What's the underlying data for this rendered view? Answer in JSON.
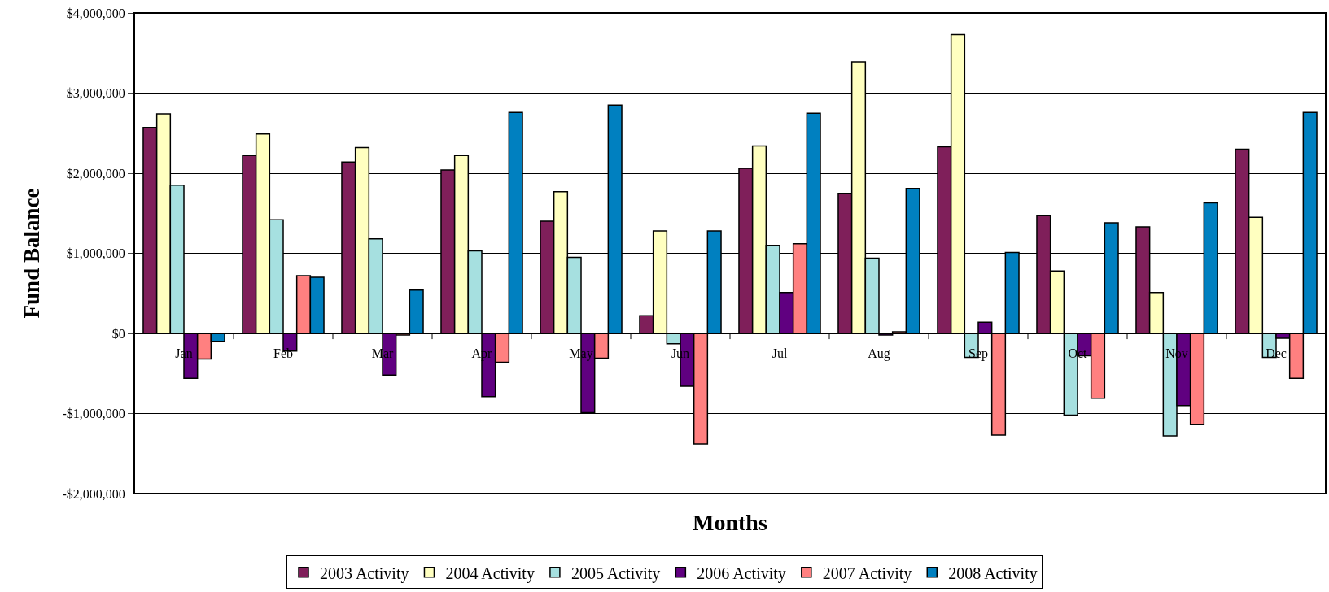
{
  "chart_data": {
    "type": "bar",
    "xlabel": "Months",
    "ylabel": "Fund Balance",
    "categories": [
      "Jan",
      "Feb",
      "Mar",
      "Apr",
      "May",
      "Jun",
      "Jul",
      "Aug",
      "Sep",
      "Oct",
      "Nov",
      "Dec"
    ],
    "series": [
      {
        "name": "2003 Activity",
        "color": "#7f1f5a",
        "values": [
          2570000,
          2220000,
          2140000,
          2040000,
          1400000,
          220000,
          2060000,
          1750000,
          2330000,
          1470000,
          1330000,
          2300000
        ]
      },
      {
        "name": "2004 Activity",
        "color": "#ffffc0",
        "values": [
          2740000,
          2490000,
          2320000,
          2220000,
          1770000,
          1280000,
          2340000,
          3390000,
          3730000,
          780000,
          510000,
          1450000
        ]
      },
      {
        "name": "2005 Activity",
        "color": "#a6e0e0",
        "values": [
          1850000,
          1420000,
          1180000,
          1030000,
          950000,
          -130000,
          1100000,
          940000,
          -300000,
          -1020000,
          -1280000,
          -300000
        ]
      },
      {
        "name": "2006 Activity",
        "color": "#600080",
        "values": [
          -560000,
          -220000,
          -520000,
          -790000,
          -990000,
          -660000,
          510000,
          -20000,
          140000,
          -280000,
          -900000,
          -60000
        ]
      },
      {
        "name": "2007 Activity",
        "color": "#ff8080",
        "values": [
          -320000,
          720000,
          -20000,
          -360000,
          -310000,
          -1380000,
          1120000,
          20000,
          -1270000,
          -810000,
          -1140000,
          -560000
        ]
      },
      {
        "name": "2008 Activity",
        "color": "#0080c0",
        "values": [
          -100000,
          700000,
          540000,
          2760000,
          2850000,
          1280000,
          2750000,
          1810000,
          1010000,
          1380000,
          1630000,
          2760000
        ]
      }
    ],
    "ylim": [
      -2000000,
      4000000
    ],
    "yticks": [
      {
        "value": -2000000,
        "label": "-$2,000,000"
      },
      {
        "value": -1000000,
        "label": "-$1,000,000"
      },
      {
        "value": 0,
        "label": "$0"
      },
      {
        "value": 1000000,
        "label": "$1,000,000"
      },
      {
        "value": 2000000,
        "label": "$2,000,000"
      },
      {
        "value": 3000000,
        "label": "$3,000,000"
      },
      {
        "value": 4000000,
        "label": "$4,000,000"
      }
    ],
    "grid": "y",
    "legend": "bottom"
  }
}
